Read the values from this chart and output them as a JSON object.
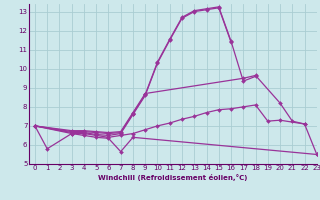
{
  "background_color": "#cde8eb",
  "grid_color": "#aacdd2",
  "line_color": "#993399",
  "marker_color": "#993399",
  "xlabel": "Windchill (Refroidissement éolien,°C)",
  "xlim": [
    -0.5,
    23
  ],
  "ylim": [
    5,
    13.4
  ],
  "xticks": [
    0,
    1,
    2,
    3,
    4,
    5,
    6,
    7,
    8,
    9,
    10,
    11,
    12,
    13,
    14,
    15,
    16,
    17,
    18,
    19,
    20,
    21,
    22,
    23
  ],
  "yticks": [
    5,
    6,
    7,
    8,
    9,
    10,
    11,
    12,
    13
  ],
  "lines": [
    {
      "x": [
        0,
        1,
        3,
        4,
        5,
        6,
        7,
        8,
        23
      ],
      "y": [
        7.0,
        5.8,
        6.6,
        6.5,
        6.4,
        6.35,
        5.65,
        6.4,
        5.5
      ]
    },
    {
      "x": [
        0,
        3,
        4,
        5,
        6,
        7,
        8,
        9,
        10,
        11,
        12,
        13,
        14,
        15,
        16,
        17,
        18,
        19,
        20,
        22
      ],
      "y": [
        7.0,
        6.6,
        6.6,
        6.5,
        6.4,
        6.5,
        6.6,
        6.8,
        7.0,
        7.15,
        7.35,
        7.5,
        7.7,
        7.85,
        7.9,
        8.0,
        8.1,
        7.25,
        7.3,
        7.1
      ]
    },
    {
      "x": [
        0,
        3,
        4,
        5,
        6,
        7,
        8,
        9,
        10,
        11,
        12,
        13,
        14,
        15,
        16
      ],
      "y": [
        7.0,
        6.65,
        6.65,
        6.55,
        6.5,
        6.6,
        7.6,
        8.6,
        10.3,
        11.5,
        12.65,
        13.0,
        13.1,
        13.2,
        11.4
      ]
    },
    {
      "x": [
        0,
        3,
        4,
        5,
        6,
        7,
        8,
        9,
        10,
        11,
        12,
        13,
        14,
        15,
        16,
        17,
        18
      ],
      "y": [
        7.0,
        6.7,
        6.7,
        6.65,
        6.6,
        6.65,
        7.65,
        8.65,
        10.35,
        11.55,
        12.7,
        13.05,
        13.15,
        13.25,
        11.45,
        9.35,
        9.6
      ]
    },
    {
      "x": [
        0,
        3,
        4,
        5,
        6,
        7,
        8,
        9,
        17,
        18,
        20,
        21,
        22,
        23
      ],
      "y": [
        7.0,
        6.75,
        6.75,
        6.7,
        6.65,
        6.7,
        7.7,
        8.7,
        9.5,
        9.65,
        8.2,
        7.25,
        7.1,
        5.5
      ]
    }
  ]
}
